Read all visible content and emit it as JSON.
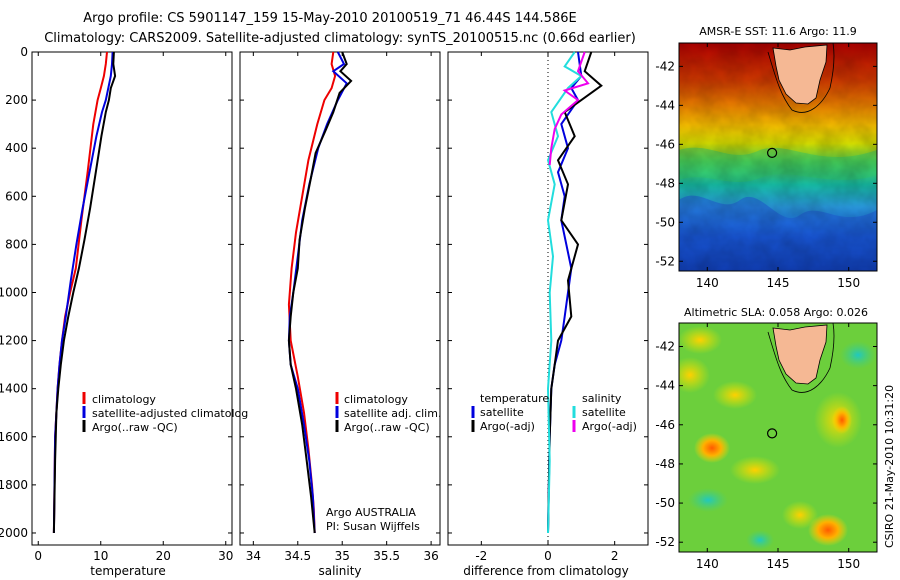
{
  "figure": {
    "title_line1": "Argo profile: CS 5901147_159 15-May-2010 20100519_71 46.44S 144.586E",
    "title_line2": "Climatology: CARS2009. Satellite-adjusted climatology: synTS_20100515.nc (0.66d earlier)",
    "credit": "CSIRO 21-May-2010 10:31:20",
    "argo_note_1": "Argo AUSTRALIA",
    "argo_note_2": "PI: Susan Wijffels"
  },
  "colors": {
    "climatology": "#ee0000",
    "satellite": "#0000dd",
    "argo": "#000000",
    "sat_salinity_diff": "#22dddd",
    "argo_salinity_diff": "#ee00ee",
    "land": "#f5b894",
    "float_marker": "#000000"
  },
  "chart_data": [
    {
      "type": "line",
      "panel": "temperature",
      "xlabel": "temperature",
      "ylabel": "",
      "xlim": [
        -1,
        31
      ],
      "ylim": [
        2050,
        0
      ],
      "xticks": [
        0,
        10,
        20,
        30
      ],
      "yticks": [
        0,
        200,
        400,
        600,
        800,
        1000,
        1200,
        1400,
        1600,
        1800,
        2000
      ],
      "legend": [
        "climatology",
        "satellite-adjusted climatolog",
        "Argo(..raw -QC)"
      ],
      "series": [
        {
          "name": "climatology",
          "color": "climatology",
          "x": [
            11.0,
            10.8,
            10.5,
            10.0,
            9.5,
            8.8,
            7.9,
            6.9,
            6.0,
            5.1,
            4.3,
            3.8,
            3.4,
            3.1,
            2.9,
            2.7,
            2.6,
            2.5
          ],
          "y": [
            0,
            50,
            100,
            150,
            200,
            300,
            500,
            700,
            900,
            1000,
            1100,
            1200,
            1300,
            1400,
            1500,
            1600,
            1800,
            2000
          ]
        },
        {
          "name": "satellite-adjusted climatolog",
          "color": "satellite",
          "x": [
            11.9,
            11.8,
            11.6,
            11.2,
            10.8,
            10.2,
            9.3,
            8.2,
            7.1,
            6.1,
            5.2,
            4.4,
            3.8,
            3.4,
            3.1,
            2.9,
            2.7,
            2.6,
            2.5
          ],
          "y": [
            0,
            50,
            100,
            150,
            200,
            250,
            350,
            500,
            650,
            800,
            950,
            1100,
            1200,
            1300,
            1400,
            1500,
            1600,
            1800,
            2000
          ]
        },
        {
          "name": "Argo(..raw -QC)",
          "color": "argo",
          "x": [
            12.1,
            12.0,
            12.3,
            11.6,
            11.3,
            10.8,
            10.1,
            9.2,
            8.3,
            7.4,
            6.5,
            5.6,
            4.8,
            4.1,
            3.6,
            3.2,
            2.9,
            2.7,
            2.5
          ],
          "y": [
            0,
            50,
            100,
            150,
            200,
            250,
            350,
            500,
            650,
            780,
            900,
            1000,
            1100,
            1200,
            1300,
            1400,
            1500,
            1700,
            2000
          ]
        }
      ]
    },
    {
      "type": "line",
      "panel": "salinity",
      "xlabel": "salinity",
      "ylabel": "",
      "xlim": [
        33.85,
        36.1
      ],
      "ylim": [
        2050,
        0
      ],
      "xticks": [
        34,
        34.5,
        35,
        35.5,
        36
      ],
      "legend": [
        "climatology",
        "satellite adj. clim.",
        "Argo(..raw -QC)"
      ],
      "series": [
        {
          "name": "climatology",
          "color": "climatology",
          "x": [
            34.9,
            34.88,
            34.92,
            34.88,
            34.8,
            34.72,
            34.62,
            34.55,
            34.48,
            34.43,
            34.4,
            34.42,
            34.5,
            34.57,
            34.62,
            34.66,
            34.68,
            34.69
          ],
          "y": [
            0,
            50,
            100,
            150,
            200,
            300,
            450,
            600,
            750,
            900,
            1050,
            1200,
            1350,
            1500,
            1650,
            1800,
            1900,
            2000
          ]
        },
        {
          "name": "satellite adj. clim.",
          "color": "satellite",
          "x": [
            34.95,
            35.02,
            34.9,
            35.05,
            34.95,
            34.83,
            34.73,
            34.63,
            34.55,
            34.5,
            34.45,
            34.41,
            34.4,
            34.42,
            34.5,
            34.57,
            34.63,
            34.67,
            34.69
          ],
          "y": [
            0,
            50,
            80,
            130,
            200,
            300,
            400,
            550,
            700,
            850,
            1000,
            1100,
            1200,
            1300,
            1400,
            1550,
            1700,
            1850,
            2000
          ]
        },
        {
          "name": "Argo(..raw -QC)",
          "color": "argo",
          "x": [
            35.0,
            35.05,
            34.98,
            35.1,
            34.97,
            34.9,
            34.82,
            34.7,
            34.65,
            34.58,
            34.52,
            34.5,
            34.45,
            34.42,
            34.4,
            34.42,
            34.48,
            34.55,
            34.6,
            34.65,
            34.69
          ],
          "y": [
            0,
            50,
            80,
            120,
            170,
            250,
            320,
            420,
            520,
            650,
            780,
            900,
            1000,
            1100,
            1200,
            1300,
            1400,
            1550,
            1700,
            1850,
            2000
          ]
        }
      ]
    },
    {
      "type": "line",
      "panel": "difference",
      "xlabel": "difference from climatology",
      "ylabel": "",
      "xlim": [
        -3,
        3
      ],
      "ylim": [
        2050,
        0
      ],
      "xticks": [
        -2,
        0,
        2
      ],
      "legend_left_title": "temperature",
      "legend_left": [
        "satellite",
        "Argo(-adj)"
      ],
      "legend_right_title": "salinity",
      "legend_right": [
        "satellite",
        "Argo(-adj)"
      ],
      "series": [
        {
          "name": "satellite",
          "group": "temperature",
          "color": "satellite",
          "x": [
            0.9,
            1.0,
            0.7,
            0.9,
            0.4,
            0.6,
            0.3,
            0.5,
            0.4,
            0.7,
            0.5,
            0.4,
            0.2,
            0.1,
            0.05,
            0.0
          ],
          "y": [
            0,
            100,
            150,
            200,
            300,
            400,
            500,
            600,
            700,
            900,
            1100,
            1200,
            1300,
            1400,
            1600,
            2000
          ]
        },
        {
          "name": "Argo(-adj)",
          "group": "temperature",
          "color": "argo",
          "x": [
            1.3,
            1.1,
            1.6,
            1.0,
            0.5,
            0.8,
            0.3,
            0.6,
            0.4,
            0.9,
            0.6,
            0.7,
            0.3,
            0.2,
            0.1,
            0.05,
            0.0
          ],
          "y": [
            0,
            80,
            140,
            200,
            250,
            350,
            450,
            550,
            700,
            800,
            950,
            1100,
            1200,
            1300,
            1400,
            1600,
            2000
          ]
        },
        {
          "name": "satellite",
          "group": "salinity",
          "color": "sat_salinity_diff",
          "x": [
            0.8,
            0.5,
            1.0,
            0.6,
            0.1,
            0.3,
            0.0,
            0.2,
            0.0,
            0.15,
            0.05,
            0.1,
            0.0,
            0.05,
            0.0
          ],
          "y": [
            0,
            60,
            100,
            150,
            250,
            350,
            450,
            550,
            700,
            850,
            1000,
            1200,
            1400,
            1700,
            2000
          ]
        },
        {
          "name": "Argo(-adj)",
          "group": "salinity",
          "color": "argo_salinity_diff",
          "x": [
            1.1,
            0.9,
            1.2,
            0.5,
            0.9,
            0.4,
            0.2,
            0.1,
            0.05
          ],
          "y": [
            0,
            80,
            130,
            160,
            200,
            260,
            320,
            400,
            470
          ]
        }
      ]
    },
    {
      "type": "heatmap",
      "panel": "sst_map",
      "title": "AMSR-E SST: 11.6 Argo: 11.9",
      "xlim": [
        138,
        152
      ],
      "ylim": [
        -52.5,
        -40.8
      ],
      "xticks": [
        140,
        145,
        150
      ],
      "yticks": [
        -42,
        -44,
        -46,
        -48,
        -50,
        -52
      ],
      "marker": {
        "lon": 144.586,
        "lat": -46.44
      }
    },
    {
      "type": "heatmap",
      "panel": "sla_map",
      "title": "Altimetric SLA: 0.058 Argo: 0.026",
      "xlim": [
        138,
        152
      ],
      "ylim": [
        -52.5,
        -40.8
      ],
      "xticks": [
        140,
        145,
        150
      ],
      "yticks": [
        -42,
        -44,
        -46,
        -48,
        -50,
        -52
      ],
      "marker": {
        "lon": 144.586,
        "lat": -46.44
      }
    }
  ]
}
